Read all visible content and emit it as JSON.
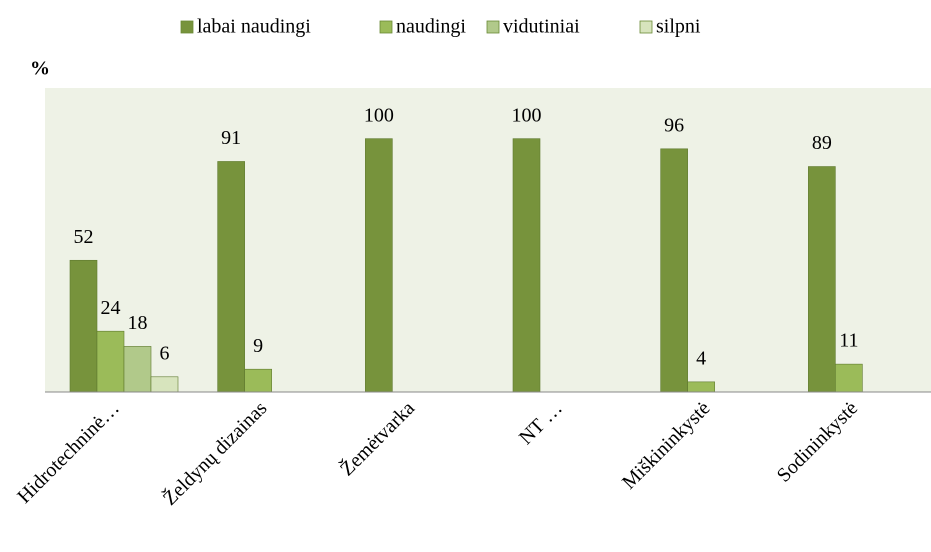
{
  "chart_data": {
    "type": "bar",
    "y_label": "%",
    "categories": [
      "Hidrotechninė…",
      "Želdynų dizainas",
      "Žemėtvarka",
      "NT …",
      "Miškininkystė",
      "Sodininkystė"
    ],
    "series": [
      {
        "name": "labai naudingi",
        "color": "#77933c",
        "values": [
          52,
          91,
          100,
          100,
          96,
          89
        ]
      },
      {
        "name": "naudingi",
        "color": "#9bbb59",
        "values": [
          24,
          9,
          null,
          null,
          4,
          11
        ]
      },
      {
        "name": "vidutiniai",
        "color": "#b1c98a",
        "values": [
          18,
          null,
          null,
          null,
          null,
          null
        ]
      },
      {
        "name": "silpni",
        "color": "#d7e4bd",
        "values": [
          6,
          null,
          null,
          null,
          null,
          null
        ]
      }
    ],
    "ylim": [
      0,
      120
    ],
    "legend": "top",
    "plot_background": "#eef2e6"
  }
}
